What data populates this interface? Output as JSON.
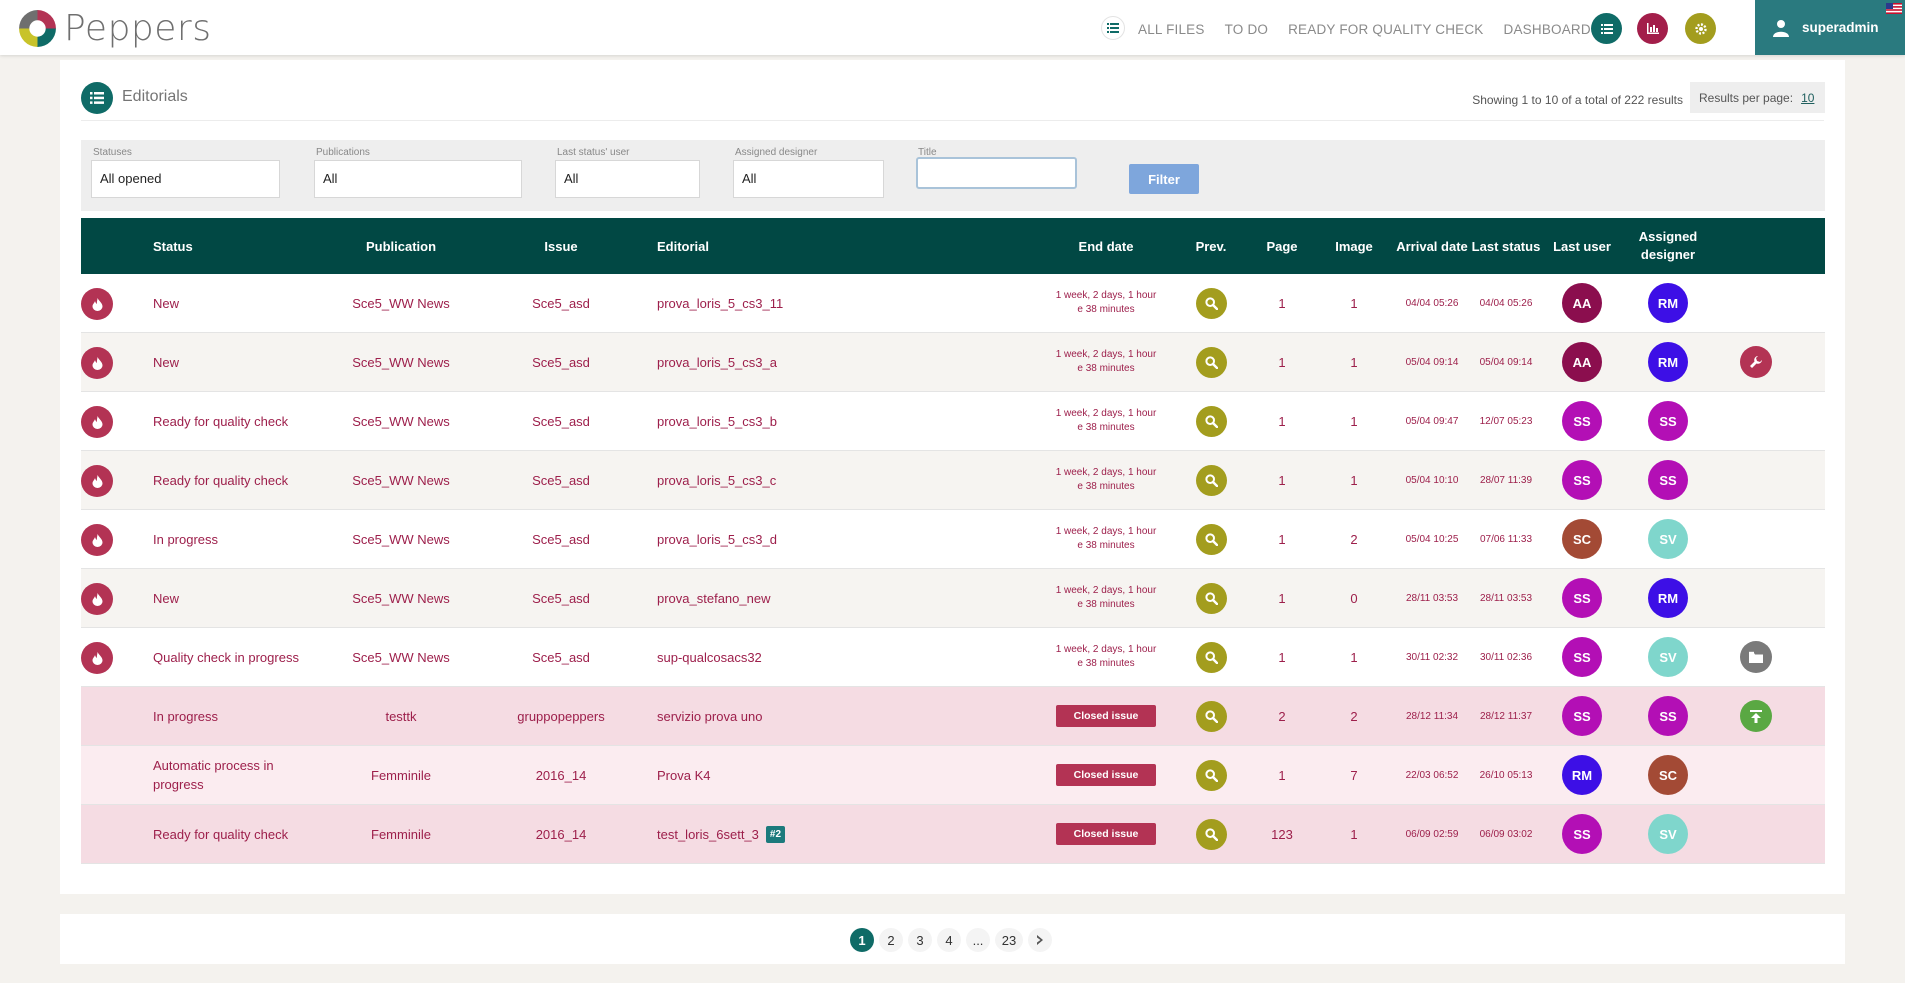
{
  "brand": {
    "name": "Peppers"
  },
  "nav": {
    "items": [
      "ALL FILES",
      "TO DO",
      "READY FOR QUALITY CHECK",
      "DASHBOARD"
    ]
  },
  "user": {
    "name": "superadmin"
  },
  "page": {
    "title": "Editorials",
    "showing": "Showing 1 to 10 of a total of 222 results",
    "results_per_page_label": "Results per page:",
    "results_per_page_value": "10"
  },
  "filters": {
    "statuses": {
      "label": "Statuses",
      "value": "All opened"
    },
    "publications": {
      "label": "Publications",
      "value": "All"
    },
    "last_status_user": {
      "label": "Last status' user",
      "value": "All"
    },
    "assigned_designer": {
      "label": "Assigned designer",
      "value": "All"
    },
    "title": {
      "label": "Title",
      "value": ""
    },
    "button": "Filter"
  },
  "columns": {
    "status": "Status",
    "publication": "Publication",
    "issue": "Issue",
    "editorial": "Editorial",
    "end_date": "End date",
    "prev": "Prev.",
    "page": "Page",
    "image": "Image",
    "arrival_date": "Arrival date",
    "last_status": "Last status",
    "last_user": "Last user",
    "assigned_designer": "Assigned designer"
  },
  "colors": {
    "teal_dark": "#014844",
    "crimson": "#b33354",
    "olive": "#a39d1e",
    "row_pink": "#f5dce3",
    "row_pink_light": "#fbecf0",
    "row_alt": "#f6f4f1"
  },
  "rows": [
    {
      "status": "New",
      "publication": "Sce5_WW News",
      "issue": "Sce5_asd",
      "editorial": "prova_loris_5_cs3_11",
      "end_date_1": "1 week, 2 days, 1 hour",
      "end_date_2": "e 38 minutes",
      "page": "1",
      "image": "1",
      "arrival": "04/04 05:26",
      "last_status": "04/04 05:26",
      "last_user": "AA",
      "designer": "RM"
    },
    {
      "status": "New",
      "publication": "Sce5_WW News",
      "issue": "Sce5_asd",
      "editorial": "prova_loris_5_cs3_a",
      "end_date_1": "1 week, 2 days, 1 hour",
      "end_date_2": "e 38 minutes",
      "page": "1",
      "image": "1",
      "arrival": "05/04 09:14",
      "last_status": "05/04 09:14",
      "last_user": "AA",
      "designer": "RM"
    },
    {
      "status": "Ready for quality check",
      "publication": "Sce5_WW News",
      "issue": "Sce5_asd",
      "editorial": "prova_loris_5_cs3_b",
      "end_date_1": "1 week, 2 days, 1 hour",
      "end_date_2": "e 38 minutes",
      "page": "1",
      "image": "1",
      "arrival": "05/04 09:47",
      "last_status": "12/07 05:23",
      "last_user": "SS",
      "designer": "SS"
    },
    {
      "status": "Ready for quality check",
      "publication": "Sce5_WW News",
      "issue": "Sce5_asd",
      "editorial": "prova_loris_5_cs3_c",
      "end_date_1": "1 week, 2 days, 1 hour",
      "end_date_2": "e 38 minutes",
      "page": "1",
      "image": "1",
      "arrival": "05/04 10:10",
      "last_status": "28/07 11:39",
      "last_user": "SS",
      "designer": "SS"
    },
    {
      "status": "In progress",
      "publication": "Sce5_WW News",
      "issue": "Sce5_asd",
      "editorial": "prova_loris_5_cs3_d",
      "end_date_1": "1 week, 2 days, 1 hour",
      "end_date_2": "e 38 minutes",
      "page": "1",
      "image": "2",
      "arrival": "05/04 10:25",
      "last_status": "07/06 11:33",
      "last_user": "SC",
      "designer": "SV"
    },
    {
      "status": "New",
      "publication": "Sce5_WW News",
      "issue": "Sce5_asd",
      "editorial": "prova_stefano_new",
      "end_date_1": "1 week, 2 days, 1 hour",
      "end_date_2": "e 38 minutes",
      "page": "1",
      "image": "0",
      "arrival": "28/11 03:53",
      "last_status": "28/11 03:53",
      "last_user": "SS",
      "designer": "RM"
    },
    {
      "status": "Quality check in progress",
      "publication": "Sce5_WW News",
      "issue": "Sce5_asd",
      "editorial": "sup-qualcosacs32",
      "end_date_1": "1 week, 2 days, 1 hour",
      "end_date_2": "e 38 minutes",
      "page": "1",
      "image": "1",
      "arrival": "30/11 02:32",
      "last_status": "30/11 02:36",
      "last_user": "SS",
      "designer": "SV"
    },
    {
      "status": "In progress",
      "publication": "testtk",
      "issue": "gruppopeppers",
      "editorial": "servizio prova uno",
      "closed": "Closed issue",
      "page": "2",
      "image": "2",
      "arrival": "28/12 11:34",
      "last_status": "28/12 11:37",
      "last_user": "SS",
      "designer": "SS"
    },
    {
      "status": "Automatic process in progress",
      "publication": "Femminile",
      "issue": "2016_14",
      "editorial": "Prova K4",
      "closed": "Closed issue",
      "page": "1",
      "image": "7",
      "arrival": "22/03 06:52",
      "last_status": "26/10 05:13",
      "last_user": "RM",
      "designer": "SC"
    },
    {
      "status": "Ready for quality check",
      "publication": "Femminile",
      "issue": "2016_14",
      "editorial": "test_loris_6sett_3",
      "tag": "#2",
      "closed": "Closed issue",
      "page": "123",
      "image": "1",
      "arrival": "06/09 02:59",
      "last_status": "06/09 03:02",
      "last_user": "SS",
      "designer": "SV"
    }
  ],
  "pagination": {
    "pages": [
      "1",
      "2",
      "3",
      "4",
      "...",
      "23"
    ],
    "current": "1"
  }
}
